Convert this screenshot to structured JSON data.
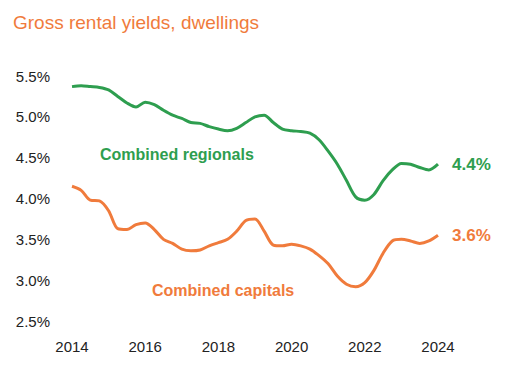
{
  "chart_data": {
    "type": "line",
    "title": "Gross rental yields, dwellings",
    "x": [
      2014,
      2014.25,
      2014.5,
      2014.75,
      2015,
      2015.25,
      2015.5,
      2015.75,
      2016,
      2016.25,
      2016.5,
      2016.75,
      2017,
      2017.25,
      2017.5,
      2017.75,
      2018,
      2018.25,
      2018.5,
      2018.75,
      2019,
      2019.25,
      2019.5,
      2019.75,
      2020,
      2020.25,
      2020.5,
      2020.75,
      2021,
      2021.25,
      2021.5,
      2021.75,
      2022,
      2022.25,
      2022.5,
      2022.75,
      2023,
      2023.25,
      2023.5,
      2023.75,
      2024
    ],
    "series": [
      {
        "name": "Combined regionals",
        "color": "#2e9e4f",
        "values": [
          5.37,
          5.38,
          5.37,
          5.36,
          5.33,
          5.25,
          5.17,
          5.12,
          5.18,
          5.15,
          5.08,
          5.02,
          4.98,
          4.93,
          4.92,
          4.88,
          4.85,
          4.83,
          4.86,
          4.93,
          5.0,
          5.02,
          4.93,
          4.85,
          4.83,
          4.82,
          4.8,
          4.72,
          4.58,
          4.42,
          4.22,
          4.02,
          3.98,
          4.05,
          4.22,
          4.35,
          4.43,
          4.42,
          4.38,
          4.35,
          4.42
        ]
      },
      {
        "name": "Combined capitals",
        "color": "#f07b3c",
        "values": [
          4.15,
          4.1,
          3.98,
          3.97,
          3.85,
          3.63,
          3.62,
          3.68,
          3.7,
          3.62,
          3.5,
          3.45,
          3.38,
          3.36,
          3.37,
          3.42,
          3.46,
          3.5,
          3.6,
          3.73,
          3.75,
          3.6,
          3.43,
          3.42,
          3.44,
          3.42,
          3.38,
          3.3,
          3.2,
          3.05,
          2.95,
          2.92,
          2.97,
          3.12,
          3.33,
          3.48,
          3.5,
          3.48,
          3.45,
          3.48,
          3.55
        ]
      }
    ],
    "annotations": [
      {
        "text": "4.4%",
        "series": "Combined regionals"
      },
      {
        "text": "3.6%",
        "series": "Combined capitals"
      }
    ],
    "xlim": [
      2014,
      2024
    ],
    "xticks": [
      2014,
      2016,
      2018,
      2020,
      2022,
      2024
    ],
    "ylim": [
      2.5,
      5.5
    ],
    "yticks": [
      {
        "value": 2.5,
        "label": "2.5%"
      },
      {
        "value": 3.0,
        "label": "3.0%"
      },
      {
        "value": 3.5,
        "label": "3.5%"
      },
      {
        "value": 4.0,
        "label": "4.0%"
      },
      {
        "value": 4.5,
        "label": "4.5%"
      },
      {
        "value": 5.0,
        "label": "5.0%"
      },
      {
        "value": 5.5,
        "label": "5.5%"
      }
    ],
    "grid": false,
    "legend": "none"
  }
}
